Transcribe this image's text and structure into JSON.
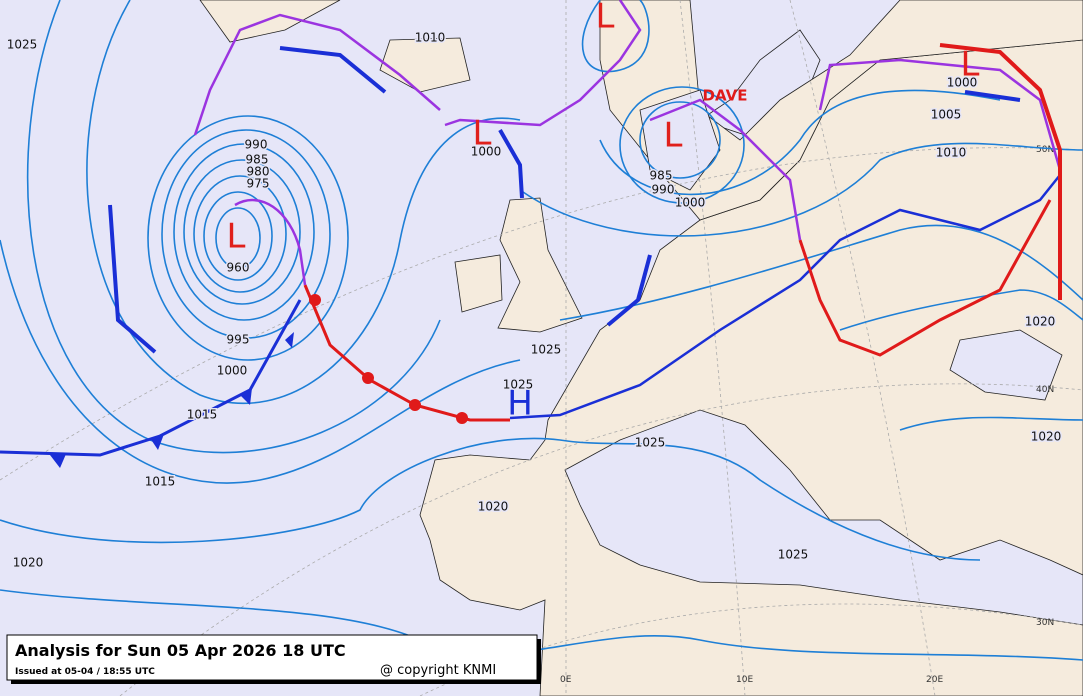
{
  "title": "Analysis for Sun 05 Apr 2026 18 UTC",
  "issued": "Issued at 05-04 / 18:55 UTC",
  "copyright": "@ copyright KNMI",
  "storm_name": "DAVE",
  "centres": [
    "L",
    "L",
    "L",
    "L",
    "L",
    "H"
  ],
  "isobar_labels": [
    "1025",
    "1010",
    "990",
    "985",
    "980",
    "975",
    "960",
    "995",
    "1000",
    "1015",
    "1015",
    "1020",
    "1000",
    "1025",
    "1025",
    "1025",
    "1020",
    "1025",
    "1020",
    "1020",
    "1005",
    "1010",
    "1000",
    "985",
    "990",
    "1000"
  ],
  "graticule_labels": [
    "0E",
    "10E",
    "20E",
    "50N",
    "40N",
    "30N"
  ]
}
